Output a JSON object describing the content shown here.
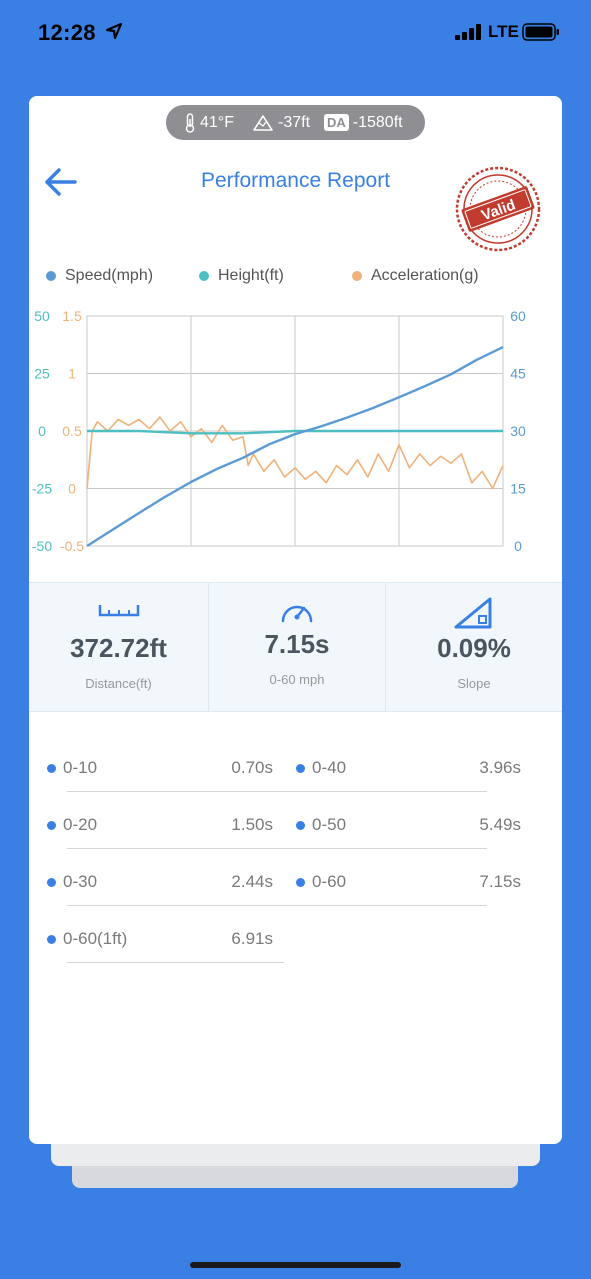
{
  "status_bar": {
    "time": "12:28",
    "network": "LTE"
  },
  "conditions": {
    "temperature": "41°F",
    "altitude": "-37ft",
    "density_altitude_badge": "DA",
    "density_altitude": "-1580ft"
  },
  "header": {
    "title": "Performance Report",
    "stamp_text": "Valid"
  },
  "colors": {
    "speed": "#5b9bd5",
    "height": "#4dbfc0",
    "acceleration": "#f0b27a",
    "accent": "#3a80e4"
  },
  "chart_data": {
    "type": "line",
    "legend": [
      "Speed(mph)",
      "Height(ft)",
      "Acceleration(g)"
    ],
    "legend_position": "top",
    "grid": true,
    "x_range": [
      0,
      8
    ],
    "axes": {
      "height_left": {
        "ticks": [
          "50",
          "25",
          "0",
          "-25",
          "-50"
        ],
        "range": [
          -50,
          50
        ]
      },
      "acceleration_left": {
        "ticks": [
          "1.5",
          "1",
          "0.5",
          "0",
          "-0.5"
        ],
        "range": [
          -0.5,
          1.5
        ]
      },
      "speed_right": {
        "ticks": [
          "60",
          "45",
          "30",
          "15",
          "0"
        ],
        "range": [
          0,
          60
        ]
      }
    },
    "series": [
      {
        "name": "Speed(mph)",
        "axis": "speed_right",
        "x": [
          0,
          0.5,
          1,
          1.5,
          2,
          2.5,
          3,
          3.5,
          4,
          4.5,
          5,
          5.5,
          6,
          6.5,
          7,
          7.5,
          8
        ],
        "y": [
          0,
          4.3,
          8.6,
          12.8,
          16.7,
          20.1,
          23,
          26.5,
          29.2,
          31.2,
          33.5,
          36,
          38.8,
          41.7,
          44.8,
          48.6,
          51.9
        ]
      },
      {
        "name": "Height(ft)",
        "axis": "height_left",
        "x": [
          0,
          1,
          2,
          3,
          4,
          5,
          6,
          7,
          8
        ],
        "y": [
          0,
          0,
          -1,
          -1,
          0,
          0,
          0,
          0,
          0
        ]
      },
      {
        "name": "Acceleration(g)",
        "axis": "acceleration_left",
        "x": [
          0,
          0.1,
          0.2,
          0.4,
          0.6,
          0.8,
          1,
          1.2,
          1.4,
          1.6,
          1.8,
          2,
          2.2,
          2.4,
          2.6,
          2.8,
          3,
          3.1,
          3.2,
          3.4,
          3.6,
          3.8,
          4,
          4.2,
          4.4,
          4.6,
          4.8,
          5,
          5.2,
          5.4,
          5.6,
          5.8,
          6,
          6.2,
          6.4,
          6.6,
          6.8,
          7,
          7.2,
          7.4,
          7.6,
          7.8,
          8
        ],
        "y": [
          0,
          0.5,
          0.58,
          0.5,
          0.6,
          0.55,
          0.6,
          0.52,
          0.62,
          0.5,
          0.58,
          0.45,
          0.52,
          0.4,
          0.55,
          0.42,
          0.45,
          0.2,
          0.3,
          0.15,
          0.25,
          0.1,
          0.18,
          0.08,
          0.15,
          0.05,
          0.2,
          0.12,
          0.25,
          0.1,
          0.3,
          0.15,
          0.38,
          0.18,
          0.3,
          0.2,
          0.28,
          0.22,
          0.3,
          0.05,
          0.15,
          0.0,
          0.2
        ]
      }
    ]
  },
  "stats": [
    {
      "value": "372.72ft",
      "label": "Distance(ft)"
    },
    {
      "value": "7.15s",
      "label": "0-60 mph"
    },
    {
      "value": "0.09%",
      "label": "Slope"
    }
  ],
  "splits": [
    {
      "label": "0-10",
      "value": "0.70s"
    },
    {
      "label": "0-40",
      "value": "3.96s"
    },
    {
      "label": "0-20",
      "value": "1.50s"
    },
    {
      "label": "0-50",
      "value": "5.49s"
    },
    {
      "label": "0-30",
      "value": "2.44s"
    },
    {
      "label": "0-60",
      "value": "7.15s"
    },
    {
      "label": "0-60(1ft)",
      "value": "6.91s"
    }
  ]
}
